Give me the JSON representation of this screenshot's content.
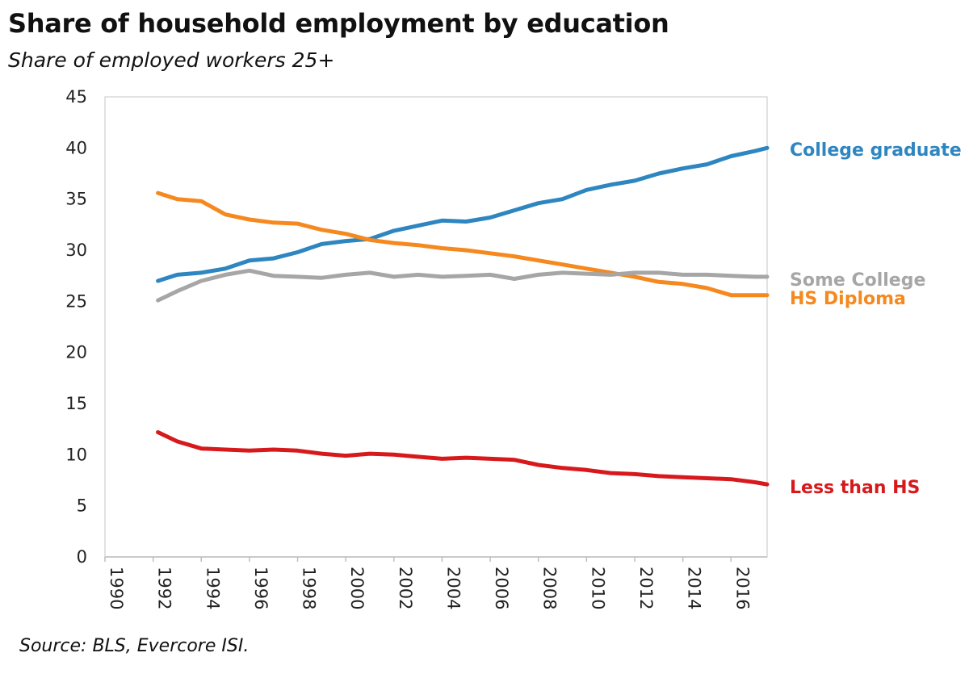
{
  "title": "Share of household employment by education",
  "subtitle": "Share of employed workers 25+",
  "source": "Source: BLS, Evercore ISI.",
  "chart_data": {
    "type": "line",
    "title": "Share of household employment by education",
    "subtitle": "Share of employed workers 25+",
    "xlabel": "",
    "ylabel": "",
    "xlim": [
      1990,
      2017.5
    ],
    "ylim": [
      0,
      45
    ],
    "yticks": [
      0,
      5,
      10,
      15,
      20,
      25,
      30,
      35,
      40,
      45
    ],
    "xticks": [
      "1990",
      "1992",
      "1994",
      "1996",
      "1998",
      "2000",
      "2002",
      "2004",
      "2006",
      "2008",
      "2010",
      "2012",
      "2014",
      "2016"
    ],
    "grid": false,
    "legend": "direct labels at right end of lines",
    "series": [
      {
        "name": "College graduate",
        "color": "#2e86c1",
        "x": [
          1992.2,
          1993,
          1994,
          1995,
          1996,
          1997,
          1998,
          1999,
          2000,
          2001,
          2002,
          2003,
          2004,
          2005,
          2006,
          2007,
          2008,
          2009,
          2010,
          2011,
          2012,
          2013,
          2014,
          2015,
          2016,
          2017,
          2017.5
        ],
        "values": [
          27.0,
          27.6,
          27.8,
          28.2,
          29.0,
          29.2,
          29.8,
          30.6,
          30.9,
          31.1,
          31.9,
          32.4,
          32.9,
          32.8,
          33.2,
          33.9,
          34.6,
          35.0,
          35.9,
          36.4,
          36.8,
          37.5,
          38.0,
          38.4,
          39.2,
          39.7,
          40.0
        ]
      },
      {
        "name": "HS Diploma",
        "color": "#f5891f",
        "x": [
          1992.2,
          1993,
          1994,
          1995,
          1996,
          1997,
          1998,
          1999,
          2000,
          2001,
          2002,
          2003,
          2004,
          2005,
          2006,
          2007,
          2008,
          2009,
          2010,
          2011,
          2012,
          2013,
          2014,
          2015,
          2016,
          2017,
          2017.5
        ],
        "values": [
          35.6,
          35.0,
          34.8,
          33.5,
          33.0,
          32.7,
          32.6,
          32.0,
          31.6,
          31.0,
          30.7,
          30.5,
          30.2,
          30.0,
          29.7,
          29.4,
          29.0,
          28.6,
          28.2,
          27.8,
          27.4,
          26.9,
          26.7,
          26.3,
          25.6,
          25.6,
          25.6
        ]
      },
      {
        "name": "Some College",
        "color": "#a6a6a6",
        "x": [
          1992.2,
          1993,
          1994,
          1995,
          1996,
          1997,
          1998,
          1999,
          2000,
          2001,
          2002,
          2003,
          2004,
          2005,
          2006,
          2007,
          2008,
          2009,
          2010,
          2011,
          2012,
          2013,
          2014,
          2015,
          2016,
          2017,
          2017.5
        ],
        "values": [
          25.1,
          26.0,
          27.0,
          27.6,
          28.0,
          27.5,
          27.4,
          27.3,
          27.6,
          27.8,
          27.4,
          27.6,
          27.4,
          27.5,
          27.6,
          27.2,
          27.6,
          27.8,
          27.7,
          27.6,
          27.8,
          27.8,
          27.6,
          27.6,
          27.5,
          27.4,
          27.4
        ]
      },
      {
        "name": "Less than HS",
        "color": "#d7191c",
        "x": [
          1992.2,
          1993,
          1994,
          1995,
          1996,
          1997,
          1998,
          1999,
          2000,
          2001,
          2002,
          2003,
          2004,
          2005,
          2006,
          2007,
          2008,
          2009,
          2010,
          2011,
          2012,
          2013,
          2014,
          2015,
          2016,
          2017,
          2017.5
        ],
        "values": [
          12.2,
          11.3,
          10.6,
          10.5,
          10.4,
          10.5,
          10.4,
          10.1,
          9.9,
          10.1,
          10.0,
          9.8,
          9.6,
          9.7,
          9.6,
          9.5,
          9.0,
          8.7,
          8.5,
          8.2,
          8.1,
          7.9,
          7.8,
          7.7,
          7.6,
          7.3,
          7.1
        ]
      }
    ]
  }
}
